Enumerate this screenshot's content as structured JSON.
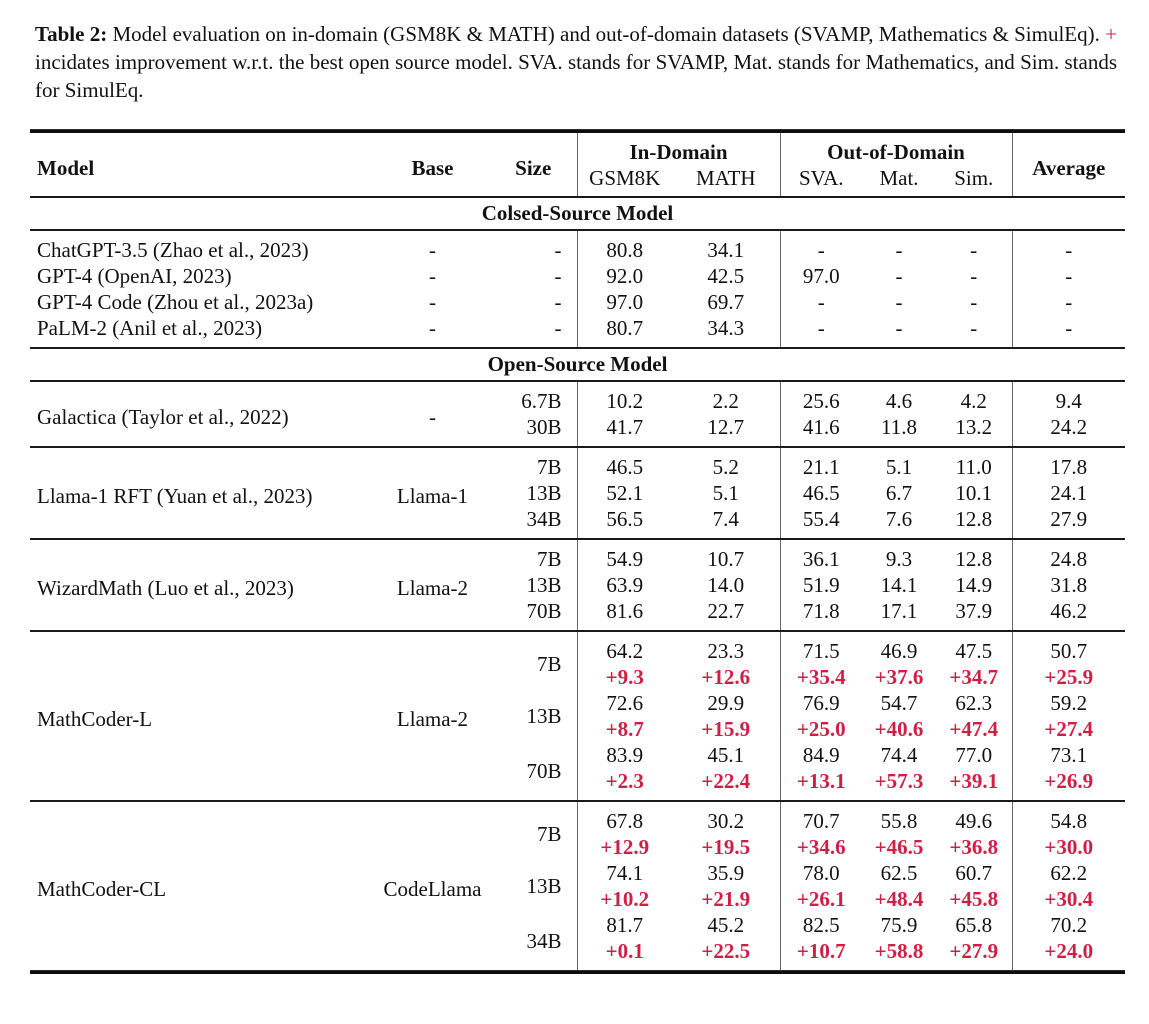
{
  "colors": {
    "accent_red": "#d01f45",
    "text": "#111111",
    "horizontal_rule": "#1a1a1a",
    "vertical_divider": "#666666",
    "background": "#ffffff"
  },
  "caption": {
    "label": "Table 2:",
    "text_before_plus": "Model evaluation on in-domain (GSM8K & MATH) and out-of-domain datasets (SVAMP, Mathematics & SimulEq).",
    "plus_sign": "+",
    "text_after_plus": "incidates improvement w.r.t. the best open source model. SVA. stands for SVAMP, Mat. stands for Mathematics, and Sim. stands for SimulEq."
  },
  "table": {
    "column_headers": {
      "model": "Model",
      "base": "Base",
      "size": "Size",
      "in_domain": "In-Domain",
      "out_of_domain": "Out-of-Domain",
      "average": "Average",
      "sub_columns": [
        "GSM8K",
        "MATH",
        "SVA.",
        "Mat.",
        "Sim."
      ]
    },
    "sections": [
      {
        "title": "Colsed-Source Model",
        "groups": [
          {
            "model": "ChatGPT-3.5 (Zhao et al., 2023)",
            "base": "-",
            "rows": [
              {
                "size": "-",
                "values": [
                  "80.8",
                  "34.1",
                  "-",
                  "-",
                  "-",
                  "-"
                ]
              }
            ]
          },
          {
            "model": "GPT-4 (OpenAI, 2023)",
            "base": "-",
            "rows": [
              {
                "size": "-",
                "values": [
                  "92.0",
                  "42.5",
                  "97.0",
                  "-",
                  "-",
                  "-"
                ]
              }
            ]
          },
          {
            "model": "GPT-4 Code (Zhou et al., 2023a)",
            "base": "-",
            "rows": [
              {
                "size": "-",
                "values": [
                  "97.0",
                  "69.7",
                  "-",
                  "-",
                  "-",
                  "-"
                ]
              }
            ]
          },
          {
            "model": "PaLM-2 (Anil et al., 2023)",
            "base": "-",
            "rows": [
              {
                "size": "-",
                "values": [
                  "80.7",
                  "34.3",
                  "-",
                  "-",
                  "-",
                  "-"
                ]
              }
            ]
          }
        ]
      },
      {
        "title": "Open-Source Model",
        "groups": [
          {
            "model": "Galactica (Taylor et al., 2022)",
            "base": "-",
            "rows": [
              {
                "size": "6.7B",
                "values": [
                  "10.2",
                  "2.2",
                  "25.6",
                  "4.6",
                  "4.2",
                  "9.4"
                ]
              },
              {
                "size": "30B",
                "values": [
                  "41.7",
                  "12.7",
                  "41.6",
                  "11.8",
                  "13.2",
                  "24.2"
                ]
              }
            ]
          },
          {
            "model": "Llama-1 RFT (Yuan et al., 2023)",
            "base": "Llama-1",
            "rows": [
              {
                "size": "7B",
                "values": [
                  "46.5",
                  "5.2",
                  "21.1",
                  "5.1",
                  "11.0",
                  "17.8"
                ]
              },
              {
                "size": "13B",
                "values": [
                  "52.1",
                  "5.1",
                  "46.5",
                  "6.7",
                  "10.1",
                  "24.1"
                ]
              },
              {
                "size": "34B",
                "values": [
                  "56.5",
                  "7.4",
                  "55.4",
                  "7.6",
                  "12.8",
                  "27.9"
                ]
              }
            ]
          },
          {
            "model": "WizardMath (Luo et al., 2023)",
            "base": "Llama-2",
            "rows": [
              {
                "size": "7B",
                "values": [
                  "54.9",
                  "10.7",
                  "36.1",
                  "9.3",
                  "12.8",
                  "24.8"
                ]
              },
              {
                "size": "13B",
                "values": [
                  "63.9",
                  "14.0",
                  "51.9",
                  "14.1",
                  "14.9",
                  "31.8"
                ]
              },
              {
                "size": "70B",
                "values": [
                  "81.6",
                  "22.7",
                  "71.8",
                  "17.1",
                  "37.9",
                  "46.2"
                ]
              }
            ]
          },
          {
            "model": "MathCoder-L",
            "base": "Llama-2",
            "rows": [
              {
                "size": "7B",
                "values": [
                  "64.2",
                  "23.3",
                  "71.5",
                  "46.9",
                  "47.5",
                  "50.7"
                ],
                "deltas": [
                  "+9.3",
                  "+12.6",
                  "+35.4",
                  "+37.6",
                  "+34.7",
                  "+25.9"
                ]
              },
              {
                "size": "13B",
                "values": [
                  "72.6",
                  "29.9",
                  "76.9",
                  "54.7",
                  "62.3",
                  "59.2"
                ],
                "deltas": [
                  "+8.7",
                  "+15.9",
                  "+25.0",
                  "+40.6",
                  "+47.4",
                  "+27.4"
                ]
              },
              {
                "size": "70B",
                "values": [
                  "83.9",
                  "45.1",
                  "84.9",
                  "74.4",
                  "77.0",
                  "73.1"
                ],
                "deltas": [
                  "+2.3",
                  "+22.4",
                  "+13.1",
                  "+57.3",
                  "+39.1",
                  "+26.9"
                ]
              }
            ]
          },
          {
            "model": "MathCoder-CL",
            "base": "CodeLlama",
            "rows": [
              {
                "size": "7B",
                "values": [
                  "67.8",
                  "30.2",
                  "70.7",
                  "55.8",
                  "49.6",
                  "54.8"
                ],
                "deltas": [
                  "+12.9",
                  "+19.5",
                  "+34.6",
                  "+46.5",
                  "+36.8",
                  "+30.0"
                ]
              },
              {
                "size": "13B",
                "values": [
                  "74.1",
                  "35.9",
                  "78.0",
                  "62.5",
                  "60.7",
                  "62.2"
                ],
                "deltas": [
                  "+10.2",
                  "+21.9",
                  "+26.1",
                  "+48.4",
                  "+45.8",
                  "+30.4"
                ]
              },
              {
                "size": "34B",
                "values": [
                  "81.7",
                  "45.2",
                  "82.5",
                  "75.9",
                  "65.8",
                  "70.2"
                ],
                "deltas": [
                  "+0.1",
                  "+22.5",
                  "+10.7",
                  "+58.8",
                  "+27.9",
                  "+24.0"
                ]
              }
            ]
          }
        ]
      }
    ]
  }
}
